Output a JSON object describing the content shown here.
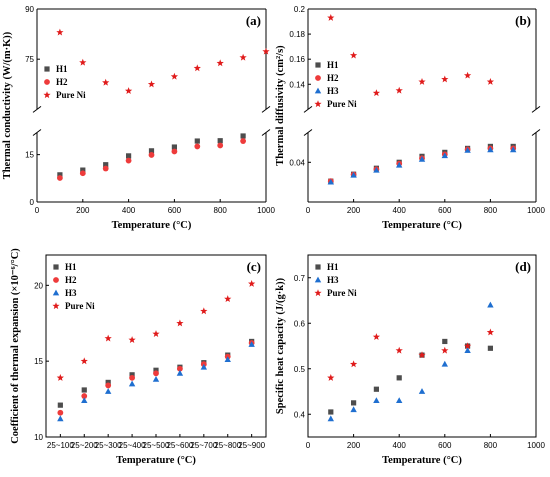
{
  "chart_data": [
    {
      "type": "scatter",
      "panel_label": "(a)",
      "xlabel": "Temperature (°C)",
      "ylabel": "Thermal conductivity (W/(m·K))",
      "xlim": [
        0,
        1000
      ],
      "x_ticks": [
        0,
        200,
        400,
        600,
        800,
        1000
      ],
      "y_axis_break": true,
      "ylim_lower": [
        0,
        22
      ],
      "ylim_upper": [
        60,
        90
      ],
      "y_ticks": [
        0,
        15,
        75,
        90
      ],
      "legend": "upper-left",
      "series": [
        {
          "name": "H1",
          "marker": "square",
          "color": "#4d4d4d",
          "x": [
            100,
            200,
            300,
            400,
            500,
            600,
            700,
            800,
            900
          ],
          "y": [
            8.6,
            10.1,
            11.8,
            14.6,
            16.2,
            17.4,
            19.3,
            19.4,
            20.9
          ]
        },
        {
          "name": "H2",
          "marker": "circle",
          "color": "#ee3b3b",
          "x": [
            100,
            200,
            300,
            400,
            500,
            600,
            700,
            800,
            900
          ],
          "y": [
            7.6,
            9.1,
            10.6,
            13.1,
            14.9,
            16.0,
            17.6,
            17.9,
            19.3
          ]
        },
        {
          "name": "Pure Ni",
          "marker": "star",
          "color": "#e01b1b",
          "x": [
            100,
            200,
            300,
            400,
            500,
            600,
            700,
            800,
            900,
            1000
          ],
          "y": [
            83.0,
            74.0,
            68.0,
            65.5,
            67.5,
            69.8,
            72.3,
            73.8,
            75.5,
            77.3
          ]
        }
      ]
    },
    {
      "type": "scatter",
      "panel_label": "(b)",
      "xlabel": "Temperature (°C)",
      "ylabel": "Thermal diffusivity (cm²/s)",
      "xlim": [
        0,
        1000
      ],
      "x_ticks": [
        0,
        200,
        400,
        600,
        800,
        1000
      ],
      "y_axis_break": true,
      "ylim_lower": [
        0.02,
        0.055
      ],
      "ylim_upper": [
        0.12,
        0.2
      ],
      "y_ticks": [
        0.04,
        0.14,
        0.16,
        0.18,
        0.2
      ],
      "legend": "upper-left",
      "series": [
        {
          "name": "H1",
          "marker": "square",
          "color": "#4d4d4d",
          "x": [
            100,
            200,
            300,
            400,
            500,
            600,
            700,
            800,
            900
          ],
          "y": [
            0.0305,
            0.034,
            0.037,
            0.04,
            0.043,
            0.045,
            0.047,
            0.048,
            0.048
          ]
        },
        {
          "name": "H2",
          "marker": "circle",
          "color": "#ee3b3b",
          "x": [
            100,
            200,
            300,
            400,
            500,
            600,
            700,
            800,
            900
          ],
          "y": [
            0.0305,
            0.0338,
            0.0365,
            0.0393,
            0.042,
            0.044,
            0.0465,
            0.047,
            0.047
          ]
        },
        {
          "name": "H3",
          "marker": "triangle",
          "color": "#1f6fd0",
          "x": [
            100,
            200,
            300,
            400,
            500,
            600,
            700,
            800,
            900
          ],
          "y": [
            0.03,
            0.0335,
            0.036,
            0.0385,
            0.0415,
            0.0433,
            0.046,
            0.0463,
            0.0463
          ]
        },
        {
          "name": "Pure Ni",
          "marker": "star",
          "color": "#e01b1b",
          "x": [
            100,
            200,
            300,
            400,
            500,
            600,
            700,
            800
          ],
          "y": [
            0.193,
            0.163,
            0.133,
            0.135,
            0.142,
            0.144,
            0.147,
            0.142
          ]
        }
      ]
    },
    {
      "type": "scatter",
      "panel_label": "(c)",
      "xlabel": "Temperature (°C)",
      "ylabel": "Coefficient of thermal expansion (×10⁻⁶/°C)",
      "categories": [
        "25~100",
        "25~200",
        "25~300",
        "25~400",
        "25~500",
        "25~600",
        "25~700",
        "25~800",
        "25~900"
      ],
      "ylim": [
        10,
        22
      ],
      "y_ticks": [
        10,
        15,
        20
      ],
      "legend": "upper-left",
      "series": [
        {
          "name": "H1",
          "marker": "square",
          "color": "#4d4d4d",
          "values": [
            12.1,
            13.1,
            13.6,
            14.1,
            14.4,
            14.6,
            14.9,
            15.4,
            16.3
          ]
        },
        {
          "name": "H2",
          "marker": "circle",
          "color": "#ee3b3b",
          "values": [
            11.6,
            12.7,
            13.4,
            13.9,
            14.2,
            14.5,
            14.8,
            15.3,
            16.2
          ]
        },
        {
          "name": "H3",
          "marker": "triangle",
          "color": "#1f6fd0",
          "values": [
            11.2,
            12.4,
            13.0,
            13.5,
            13.8,
            14.2,
            14.6,
            15.1,
            16.1
          ]
        },
        {
          "name": "Pure Ni",
          "marker": "star",
          "color": "#e01b1b",
          "values": [
            13.9,
            15.0,
            16.5,
            16.4,
            16.8,
            17.5,
            18.3,
            19.1,
            20.1
          ]
        }
      ]
    },
    {
      "type": "scatter",
      "panel_label": "(d)",
      "xlabel": "Temperature (°C)",
      "ylabel": "Specific heat capacity (J/(g·k))",
      "xlim": [
        0,
        1000
      ],
      "x_ticks": [
        0,
        200,
        400,
        600,
        800,
        1000
      ],
      "ylim": [
        0.35,
        0.75
      ],
      "y_ticks": [
        0.4,
        0.5,
        0.6,
        0.7
      ],
      "legend": "upper-left",
      "series": [
        {
          "name": "H1",
          "marker": "square",
          "color": "#4d4d4d",
          "x": [
            100,
            200,
            300,
            400,
            500,
            600,
            700,
            800
          ],
          "y": [
            0.405,
            0.425,
            0.455,
            0.48,
            0.53,
            0.56,
            0.55,
            0.545
          ]
        },
        {
          "name": "H3",
          "marker": "triangle",
          "color": "#1f6fd0",
          "x": [
            100,
            200,
            300,
            400,
            500,
            600,
            700,
            800
          ],
          "y": [
            0.39,
            0.41,
            0.43,
            0.43,
            0.45,
            0.51,
            0.54,
            0.64
          ]
        },
        {
          "name": "Pure Ni",
          "marker": "star",
          "color": "#e01b1b",
          "x": [
            100,
            200,
            300,
            400,
            500,
            600,
            700,
            800
          ],
          "y": [
            0.48,
            0.51,
            0.57,
            0.54,
            0.53,
            0.54,
            0.55,
            0.58
          ]
        }
      ]
    }
  ]
}
